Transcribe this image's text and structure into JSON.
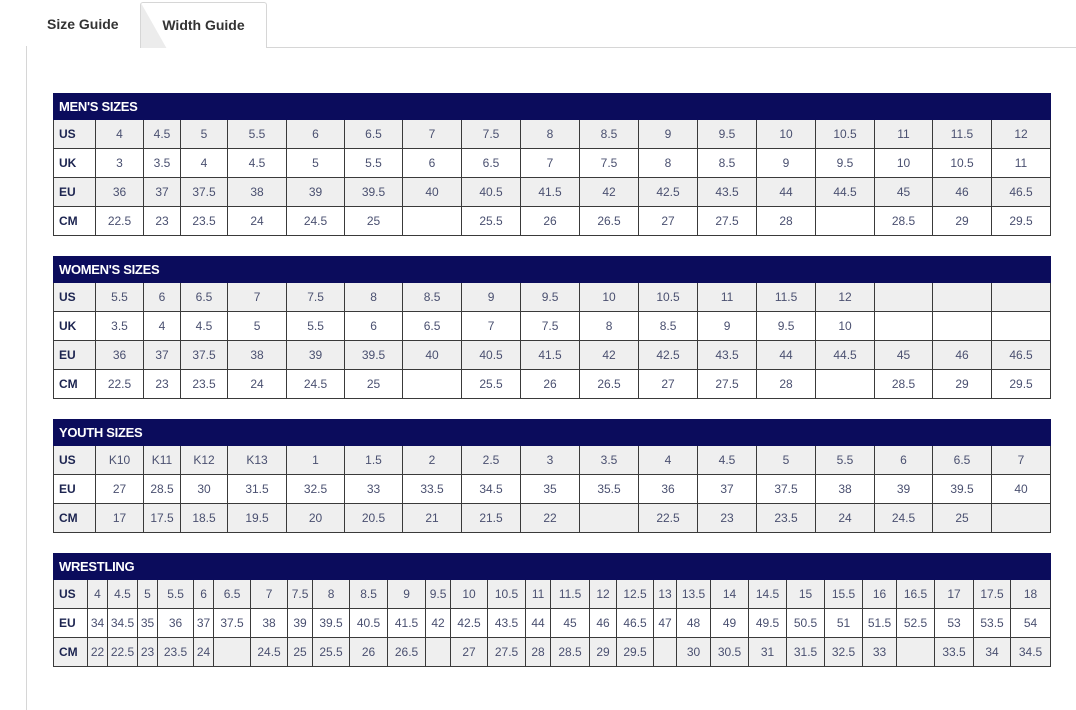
{
  "tabs": [
    {
      "label": "Size Guide",
      "active": true
    },
    {
      "label": "Width Guide",
      "active": false
    }
  ],
  "colors": {
    "header_bg": "#0b0c5c",
    "shaded_row": "#efefef",
    "text": "#4a5070"
  },
  "tables": [
    {
      "title": "MEN'S SIZES",
      "rows": [
        {
          "label": "US",
          "values": [
            "4",
            "4.5",
            "5",
            "5.5",
            "6",
            "6.5",
            "7",
            "7.5",
            "8",
            "8.5",
            "9",
            "9.5",
            "10",
            "10.5",
            "11",
            "11.5",
            "12"
          ]
        },
        {
          "label": "UK",
          "values": [
            "3",
            "3.5",
            "4",
            "4.5",
            "5",
            "5.5",
            "6",
            "6.5",
            "7",
            "7.5",
            "8",
            "8.5",
            "9",
            "9.5",
            "10",
            "10.5",
            "11"
          ]
        },
        {
          "label": "EU",
          "values": [
            "36",
            "37",
            "37.5",
            "38",
            "39",
            "39.5",
            "40",
            "40.5",
            "41.5",
            "42",
            "42.5",
            "43.5",
            "44",
            "44.5",
            "45",
            "46",
            "46.5"
          ]
        },
        {
          "label": "CM",
          "values": [
            "22.5",
            "23",
            "23.5",
            "24",
            "24.5",
            "25",
            "",
            "25.5",
            "26",
            "26.5",
            "27",
            "27.5",
            "28",
            "",
            "28.5",
            "29",
            "29.5"
          ]
        }
      ]
    },
    {
      "title": "WOMEN'S SIZES",
      "rows": [
        {
          "label": "US",
          "values": [
            "5.5",
            "6",
            "6.5",
            "7",
            "7.5",
            "8",
            "8.5",
            "9",
            "9.5",
            "10",
            "10.5",
            "11",
            "11.5",
            "12",
            "",
            "",
            ""
          ]
        },
        {
          "label": "UK",
          "values": [
            "3.5",
            "4",
            "4.5",
            "5",
            "5.5",
            "6",
            "6.5",
            "7",
            "7.5",
            "8",
            "8.5",
            "9",
            "9.5",
            "10",
            "",
            "",
            ""
          ]
        },
        {
          "label": "EU",
          "values": [
            "36",
            "37",
            "37.5",
            "38",
            "39",
            "39.5",
            "40",
            "40.5",
            "41.5",
            "42",
            "42.5",
            "43.5",
            "44",
            "44.5",
            "45",
            "46",
            "46.5"
          ]
        },
        {
          "label": "CM",
          "values": [
            "22.5",
            "23",
            "23.5",
            "24",
            "24.5",
            "25",
            "",
            "25.5",
            "26",
            "26.5",
            "27",
            "27.5",
            "28",
            "",
            "28.5",
            "29",
            "29.5"
          ]
        }
      ]
    },
    {
      "title": "YOUTH SIZES",
      "rows": [
        {
          "label": "US",
          "values": [
            "K10",
            "K11",
            "K12",
            "K13",
            "1",
            "1.5",
            "2",
            "2.5",
            "3",
            "3.5",
            "4",
            "4.5",
            "5",
            "5.5",
            "6",
            "6.5",
            "7"
          ]
        },
        {
          "label": "EU",
          "values": [
            "27",
            "28.5",
            "30",
            "31.5",
            "32.5",
            "33",
            "33.5",
            "34.5",
            "35",
            "35.5",
            "36",
            "37",
            "37.5",
            "38",
            "39",
            "39.5",
            "40"
          ]
        },
        {
          "label": "CM",
          "values": [
            "17",
            "17.5",
            "18.5",
            "19.5",
            "20",
            "20.5",
            "21",
            "21.5",
            "22",
            "",
            "22.5",
            "23",
            "23.5",
            "24",
            "24.5",
            "25",
            ""
          ]
        }
      ]
    },
    {
      "title": "WRESTLING",
      "rows": [
        {
          "label": "US",
          "values": [
            "4",
            "4.5",
            "5",
            "5.5",
            "6",
            "6.5",
            "7",
            "7.5",
            "8",
            "8.5",
            "9",
            "9.5",
            "10",
            "10.5",
            "11",
            "11.5",
            "12",
            "12.5",
            "13",
            "13.5",
            "14",
            "14.5",
            "15",
            "15.5",
            "16",
            "16.5",
            "17",
            "17.5",
            "18"
          ]
        },
        {
          "label": "EU",
          "values": [
            "34",
            "34.5",
            "35",
            "36",
            "37",
            "37.5",
            "38",
            "39",
            "39.5",
            "40.5",
            "41.5",
            "42",
            "42.5",
            "43.5",
            "44",
            "45",
            "46",
            "46.5",
            "47",
            "48",
            "49",
            "49.5",
            "50.5",
            "51",
            "51.5",
            "52.5",
            "53",
            "53.5",
            "54"
          ]
        },
        {
          "label": "CM",
          "values": [
            "22",
            "22.5",
            "23",
            "23.5",
            "24",
            "",
            "24.5",
            "25",
            "25.5",
            "26",
            "26.5",
            "",
            "27",
            "27.5",
            "28",
            "28.5",
            "29",
            "29.5",
            "",
            "30",
            "30.5",
            "31",
            "31.5",
            "32.5",
            "33",
            "",
            "33.5",
            "34",
            "34.5"
          ]
        }
      ]
    }
  ]
}
